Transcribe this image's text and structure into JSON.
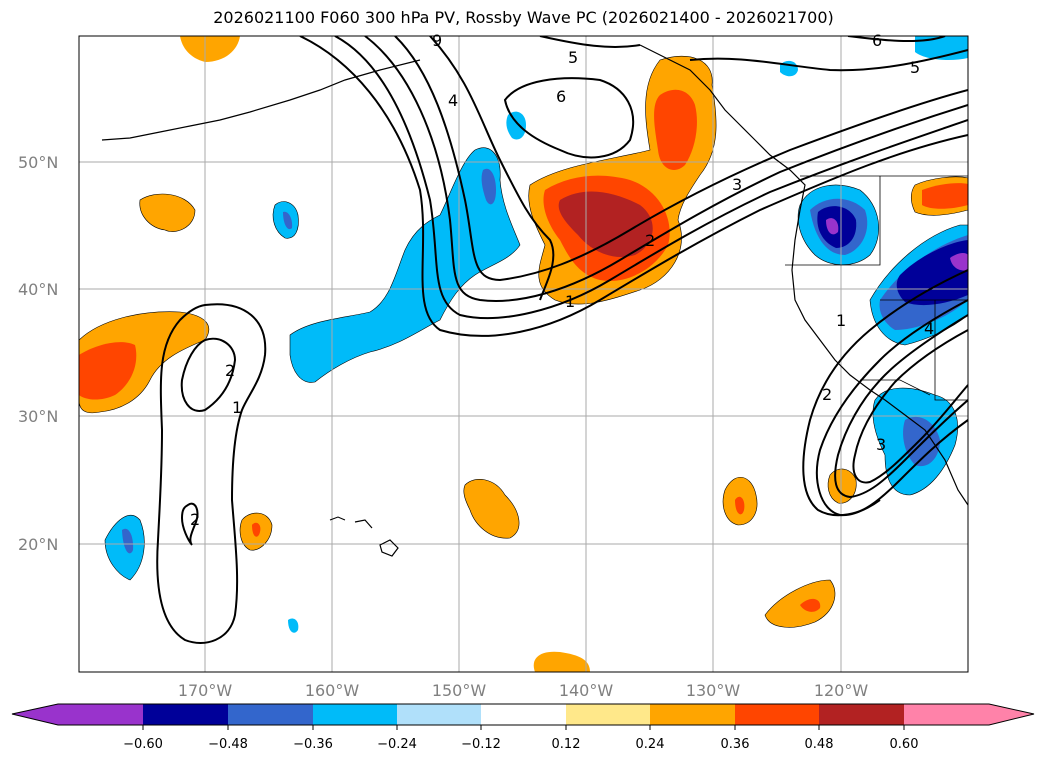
{
  "title": "2026021100 F060 300 hPa PV, Rossby Wave PC (2026021400 - 2026021700)",
  "colors": {
    "purple": "#9933cc",
    "navy": "#000099",
    "royal": "#3366cc",
    "sky": "#00bbf9",
    "pale_blue": "#b0e0fa",
    "white": "#ffffff",
    "pale_yellow": "#ffe88a",
    "orange": "#ffa500",
    "red_orange": "#ff4500",
    "brick": "#b22222",
    "pink": "#ff82a9"
  },
  "axes": {
    "lat_labels": [
      "50°N",
      "40°N",
      "30°N",
      "20°N"
    ],
    "lon_labels": [
      "170°W",
      "160°W",
      "150°W",
      "140°W",
      "130°W",
      "120°W"
    ]
  },
  "colorbar": {
    "ticks": [
      "−0.60",
      "−0.48",
      "−0.36",
      "−0.24",
      "−0.12",
      "0.12",
      "0.24",
      "0.36",
      "0.48",
      "0.60"
    ]
  },
  "contour_labels": {
    "l5a": "5",
    "l6a": "6",
    "l6b": "6",
    "l5b": "5",
    "l4a": "4",
    "l3a": "3",
    "l2a": "2",
    "l1a": "1",
    "l2b": "2",
    "l1b": "1",
    "l2c": "2",
    "l1c": "1",
    "l2d": "2",
    "l3b": "3",
    "l4b": "4",
    "l9a": "9"
  }
}
